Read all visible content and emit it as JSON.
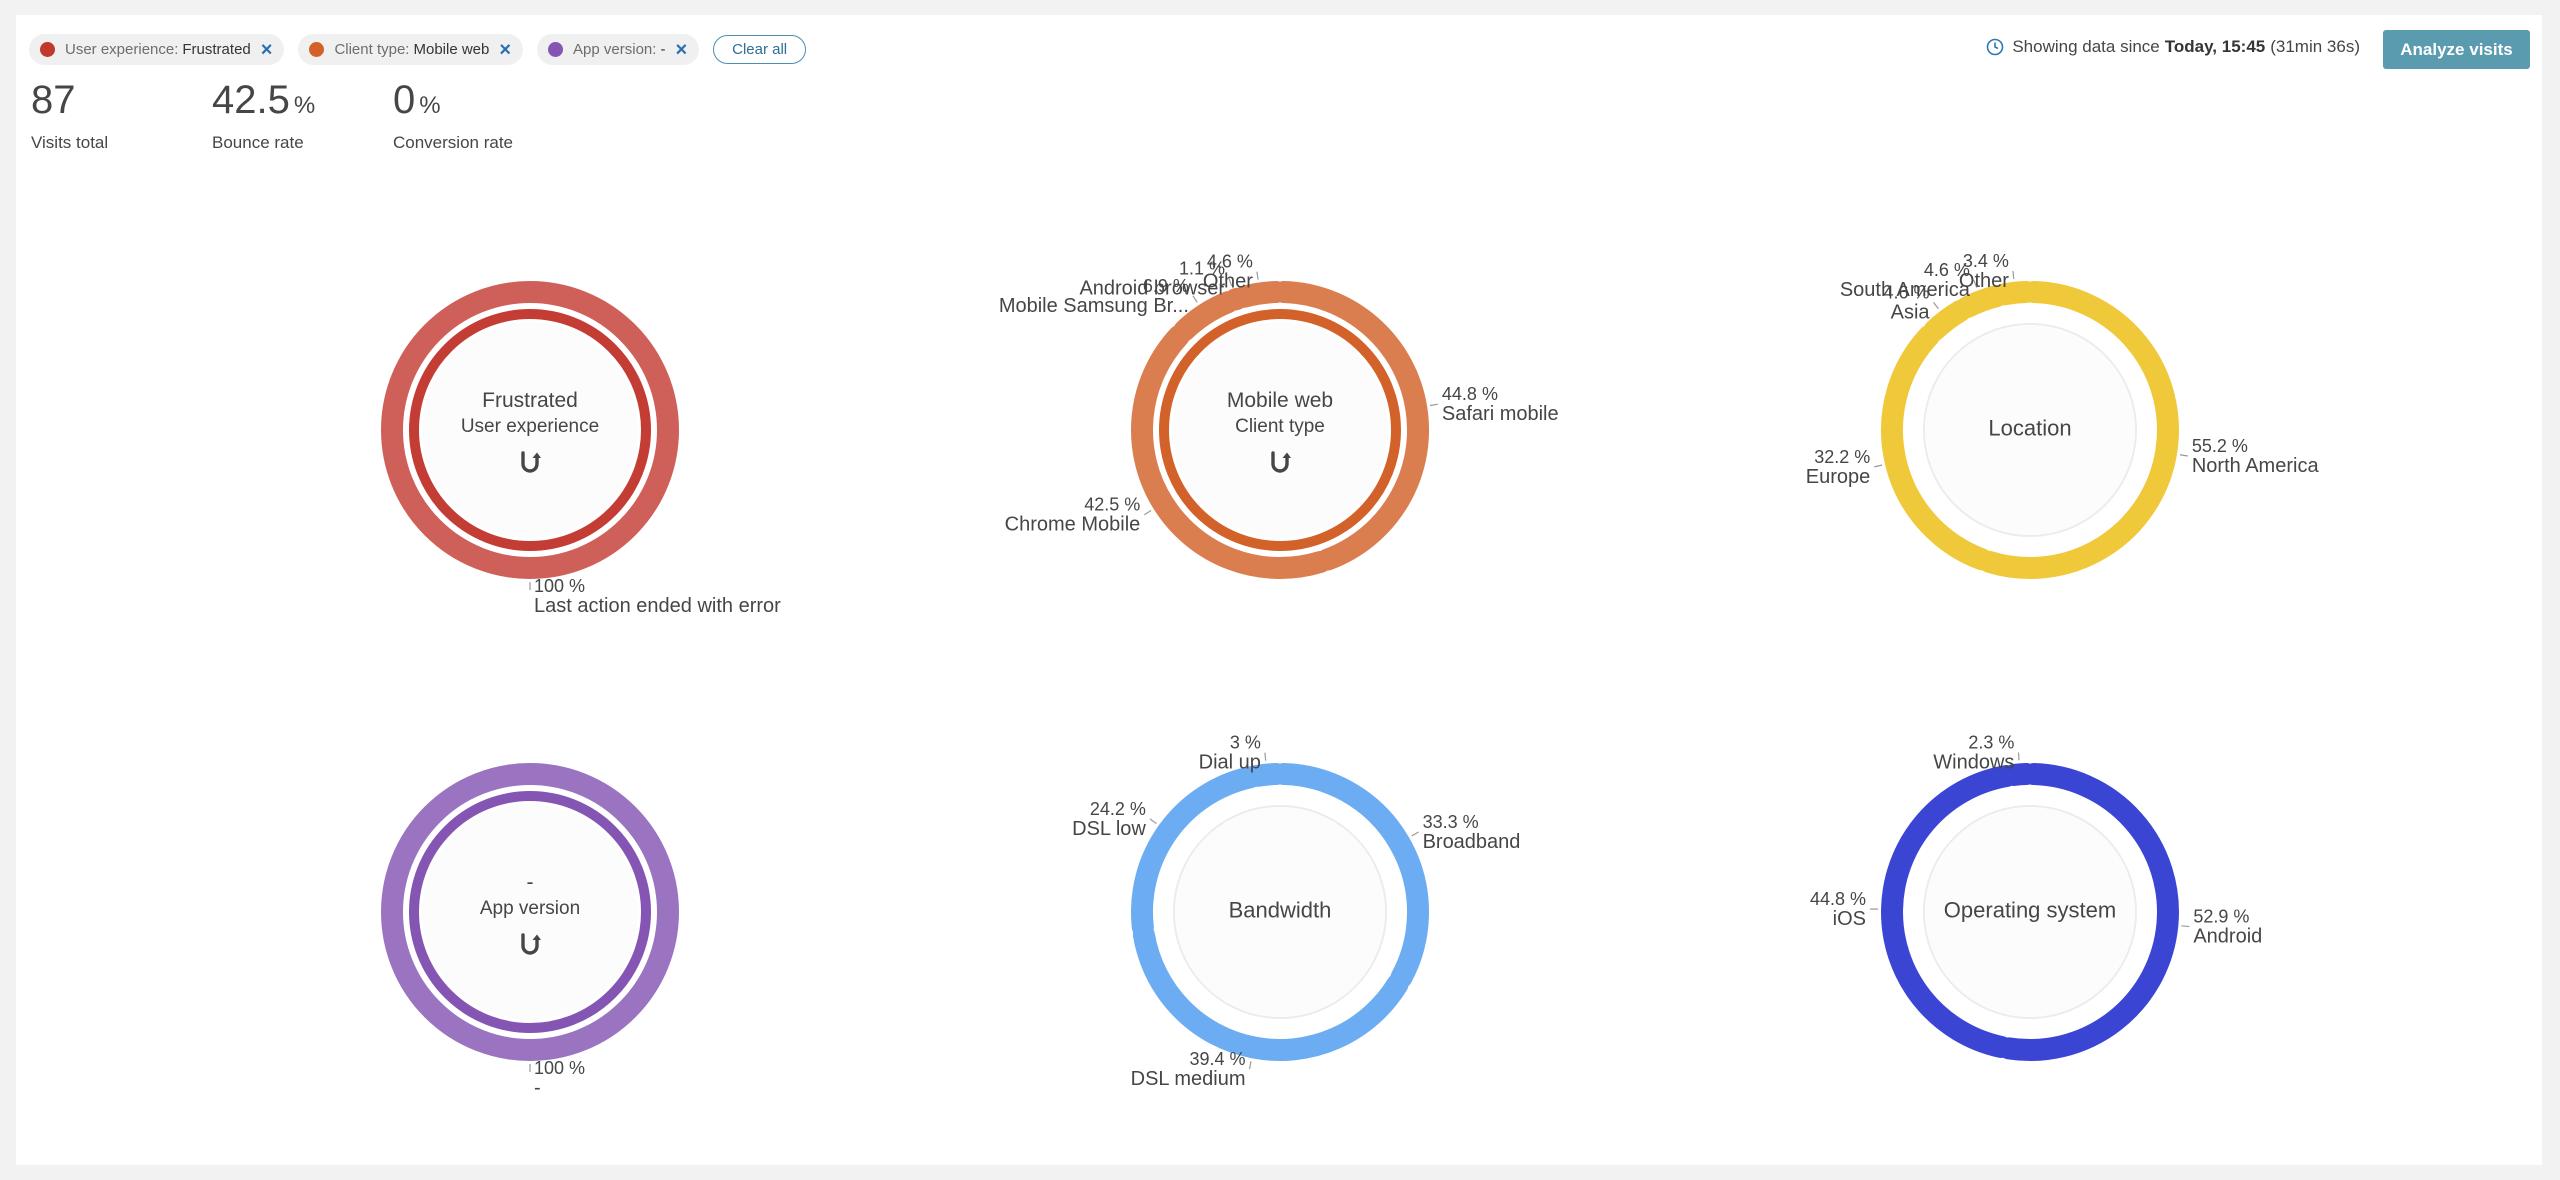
{
  "filters": [
    {
      "key": "User experience:",
      "value": "Frustrated",
      "color": "#c0392b"
    },
    {
      "key": "Client type:",
      "value": "Mobile web",
      "color": "#d2622a"
    },
    {
      "key": "App version:",
      "value": "-",
      "color": "#8455b3"
    }
  ],
  "filters_remove_icon": "close-icon",
  "clear_all_label": "Clear all",
  "since": {
    "prefix": "Showing data since",
    "time": "Today, 15:45",
    "duration": "(31min 36s)",
    "icon": "clock-icon"
  },
  "analyze_label": "Analyze visits",
  "metrics": [
    {
      "value": "87",
      "unit": "",
      "label": "Visits total"
    },
    {
      "value": "42.5",
      "unit": "%",
      "label": "Bounce rate"
    },
    {
      "value": "0",
      "unit": "%",
      "label": "Conversion rate"
    }
  ],
  "reset_icon": "reset-icon",
  "chart_data": [
    {
      "type": "donut",
      "center_value": "Frustrated",
      "center_title": "User experience",
      "color": "#c43d34",
      "filtered": true,
      "slices": [
        {
          "name": "Last action ended with error",
          "pct": 100,
          "label": "100 %"
        }
      ]
    },
    {
      "type": "donut",
      "center_value": "Mobile web",
      "center_title": "Client type",
      "color": "#d2622a",
      "filtered": true,
      "slices": [
        {
          "name": "Safari mobile",
          "pct": 44.8,
          "label": "44.8 %"
        },
        {
          "name": "Chrome Mobile",
          "pct": 42.5,
          "label": "42.5 %"
        },
        {
          "name": "Mobile Samsung Br...",
          "pct": 6.9,
          "label": "6.9 %"
        },
        {
          "name": "Android browser",
          "pct": 1.1,
          "label": "1.1 %"
        },
        {
          "name": "Other",
          "pct": 4.6,
          "label": "4.6 %"
        }
      ]
    },
    {
      "type": "donut",
      "center_value": "",
      "center_title": "Location",
      "color": "#efc93a",
      "filtered": false,
      "slices": [
        {
          "name": "North America",
          "pct": 55.2,
          "label": "55.2 %"
        },
        {
          "name": "Europe",
          "pct": 32.2,
          "label": "32.2 %"
        },
        {
          "name": "Asia",
          "pct": 4.6,
          "label": "4.6 %"
        },
        {
          "name": "South America",
          "pct": 4.6,
          "label": "4.6 %"
        },
        {
          "name": "Other",
          "pct": 3.4,
          "label": "3.4 %"
        }
      ]
    },
    {
      "type": "donut",
      "center_value": "-",
      "center_title": "App version",
      "color": "#8455b3",
      "filtered": true,
      "slices": [
        {
          "name": "-",
          "pct": 100,
          "label": "100 %"
        }
      ]
    },
    {
      "type": "donut",
      "center_value": "",
      "center_title": "Bandwidth",
      "color": "#6cacf2",
      "filtered": false,
      "slices": [
        {
          "name": "Broadband",
          "pct": 33.3,
          "label": "33.3 %"
        },
        {
          "name": "DSL medium",
          "pct": 39.4,
          "label": "39.4 %"
        },
        {
          "name": "DSL low",
          "pct": 24.2,
          "label": "24.2 %"
        },
        {
          "name": "Dial up",
          "pct": 3,
          "label": "3 %"
        }
      ]
    },
    {
      "type": "donut",
      "center_value": "",
      "center_title": "Operating system",
      "color": "#3a45d4",
      "filtered": false,
      "slices": [
        {
          "name": "Android",
          "pct": 52.9,
          "label": "52.9 %"
        },
        {
          "name": "iOS",
          "pct": 44.8,
          "label": "44.8 %"
        },
        {
          "name": "Windows",
          "pct": 2.3,
          "label": "2.3 %"
        }
      ]
    }
  ]
}
